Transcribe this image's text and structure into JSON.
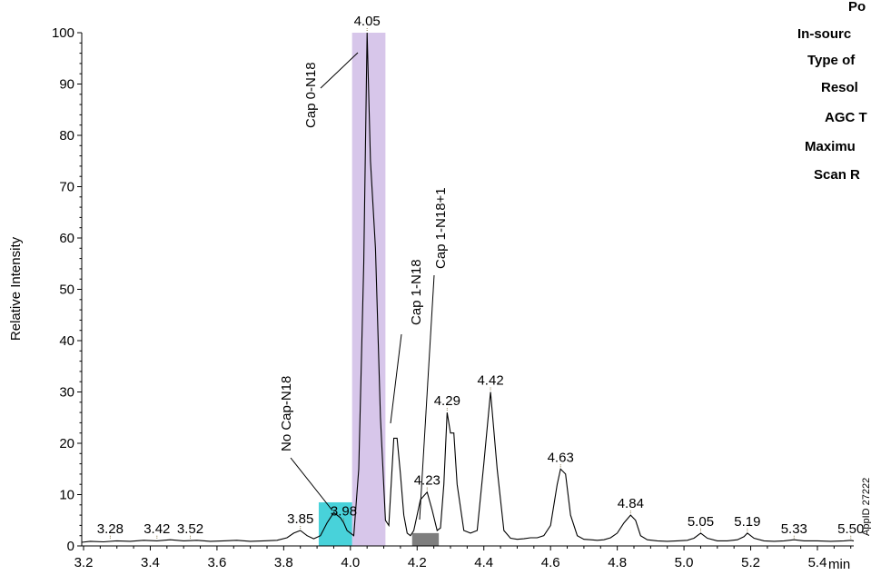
{
  "chart_data": {
    "type": "line",
    "title": "",
    "xlabel": "min",
    "ylabel": "Relative Intensity",
    "xlim": [
      3.2,
      5.5
    ],
    "ylim": [
      0,
      100
    ],
    "x_ticks": [
      3.2,
      3.4,
      3.6,
      3.8,
      4.0,
      4.2,
      4.4,
      4.6,
      4.8,
      5.0,
      5.2,
      5.4
    ],
    "x_tick_labels": [
      "3.2",
      "3.4",
      "3.6",
      "3.8",
      "4.0",
      "4.2",
      "4.4",
      "4.6",
      "4.8",
      "5.0",
      "5.2",
      "5.4"
    ],
    "y_ticks": [
      0,
      10,
      20,
      30,
      40,
      50,
      60,
      70,
      80,
      90,
      100
    ],
    "y_tick_labels": [
      "0",
      "10",
      "20",
      "30",
      "40",
      "50",
      "60",
      "70",
      "80",
      "90",
      "100"
    ],
    "grid": false,
    "series": [
      {
        "x": [
          3.18,
          3.22,
          3.26,
          3.3,
          3.34,
          3.38,
          3.42,
          3.46,
          3.5,
          3.54,
          3.58,
          3.62,
          3.66,
          3.7,
          3.74,
          3.78,
          3.81,
          3.83,
          3.85,
          3.87,
          3.89,
          3.91,
          3.93,
          3.95,
          3.97,
          3.98,
          3.99,
          4.01,
          4.025,
          4.04,
          4.05,
          4.06,
          4.075,
          4.09,
          4.105,
          4.115,
          4.13,
          4.14,
          4.15,
          4.16,
          4.17,
          4.18,
          4.19,
          4.21,
          4.23,
          4.245,
          4.26,
          4.27,
          4.28,
          4.29,
          4.3,
          4.31,
          4.32,
          4.34,
          4.36,
          4.38,
          4.4,
          4.42,
          4.44,
          4.46,
          4.48,
          4.5,
          4.52,
          4.54,
          4.56,
          4.58,
          4.6,
          4.62,
          4.63,
          4.645,
          4.66,
          4.68,
          4.7,
          4.72,
          4.74,
          4.76,
          4.78,
          4.8,
          4.82,
          4.84,
          4.855,
          4.87,
          4.89,
          4.92,
          4.95,
          4.98,
          5.01,
          5.03,
          5.05,
          5.07,
          5.1,
          5.13,
          5.16,
          5.18,
          5.19,
          5.21,
          5.24,
          5.27,
          5.3,
          5.33,
          5.36,
          5.4,
          5.44,
          5.48,
          5.5,
          5.53
        ],
        "values": [
          0.7,
          0.9,
          0.8,
          1.0,
          0.9,
          1.1,
          1.0,
          1.2,
          1.0,
          1.1,
          0.9,
          1.0,
          1.1,
          0.9,
          1.0,
          1.1,
          1.6,
          2.5,
          3.0,
          2.0,
          1.4,
          2.0,
          4.5,
          6.5,
          5.5,
          4.5,
          3.0,
          2.0,
          15.0,
          55.0,
          100.0,
          75.0,
          58.0,
          25.0,
          5.0,
          4.0,
          21.0,
          21.0,
          14.0,
          6.0,
          2.5,
          2.0,
          3.0,
          9.0,
          10.5,
          7.0,
          3.0,
          3.5,
          12.0,
          26.0,
          22.0,
          22.0,
          12.0,
          3.0,
          2.5,
          3.0,
          16.0,
          30.0,
          15.0,
          3.0,
          1.5,
          1.3,
          1.4,
          1.6,
          1.6,
          2.0,
          4.0,
          12.0,
          15.0,
          14.0,
          6.0,
          2.0,
          1.3,
          1.2,
          1.1,
          1.2,
          1.6,
          2.5,
          4.5,
          6.0,
          5.0,
          2.0,
          1.2,
          1.0,
          0.9,
          1.0,
          1.1,
          1.5,
          2.5,
          1.5,
          1.0,
          1.0,
          1.2,
          1.8,
          2.5,
          1.5,
          1.0,
          0.9,
          1.0,
          1.2,
          1.0,
          1.0,
          0.9,
          1.0,
          1.1,
          1.0
        ]
      }
    ],
    "peak_labels": [
      {
        "x": 3.28,
        "y": 1.1,
        "label": "3.28"
      },
      {
        "x": 3.42,
        "y": 1.1,
        "label": "3.42"
      },
      {
        "x": 3.52,
        "y": 1.1,
        "label": "3.52"
      },
      {
        "x": 3.85,
        "y": 3.0,
        "label": "3.85"
      },
      {
        "x": 3.98,
        "y": 4.5,
        "label": "3.98"
      },
      {
        "x": 4.05,
        "y": 100,
        "label": "4.05"
      },
      {
        "x": 4.23,
        "y": 10.5,
        "label": "4.23"
      },
      {
        "x": 4.29,
        "y": 26,
        "label": "4.29"
      },
      {
        "x": 4.42,
        "y": 30,
        "label": "4.42"
      },
      {
        "x": 4.63,
        "y": 15,
        "label": "4.63"
      },
      {
        "x": 4.84,
        "y": 6,
        "label": "4.84"
      },
      {
        "x": 5.05,
        "y": 2.5,
        "label": "5.05"
      },
      {
        "x": 5.19,
        "y": 2.5,
        "label": "5.19"
      },
      {
        "x": 5.33,
        "y": 1.1,
        "label": "5.33"
      },
      {
        "x": 5.5,
        "y": 1.1,
        "label": "5.50"
      }
    ],
    "highlight_regions": [
      {
        "x0": 4.005,
        "x1": 4.105,
        "y0": 0,
        "y1": 100,
        "color": "#c9b3e3"
      },
      {
        "x0": 3.905,
        "x1": 4.005,
        "y0": 0,
        "y1": 8.5,
        "color": "#34cdd6"
      },
      {
        "x0": 4.185,
        "x1": 4.265,
        "y0": 0,
        "y1": 2.5,
        "color": "#707070"
      }
    ],
    "annotations": [
      {
        "text": "Cap 0-N18"
      },
      {
        "text": "No Cap-N18"
      },
      {
        "text": "Cap 1-N18"
      },
      {
        "text": "Cap 1-N18+1"
      }
    ]
  },
  "side_panel": {
    "lines": [
      "Po",
      "In-sourc",
      "Type of",
      "Resol",
      "AGC T",
      "Maximu",
      "Scan R"
    ]
  },
  "app_id": "AppID 27222"
}
